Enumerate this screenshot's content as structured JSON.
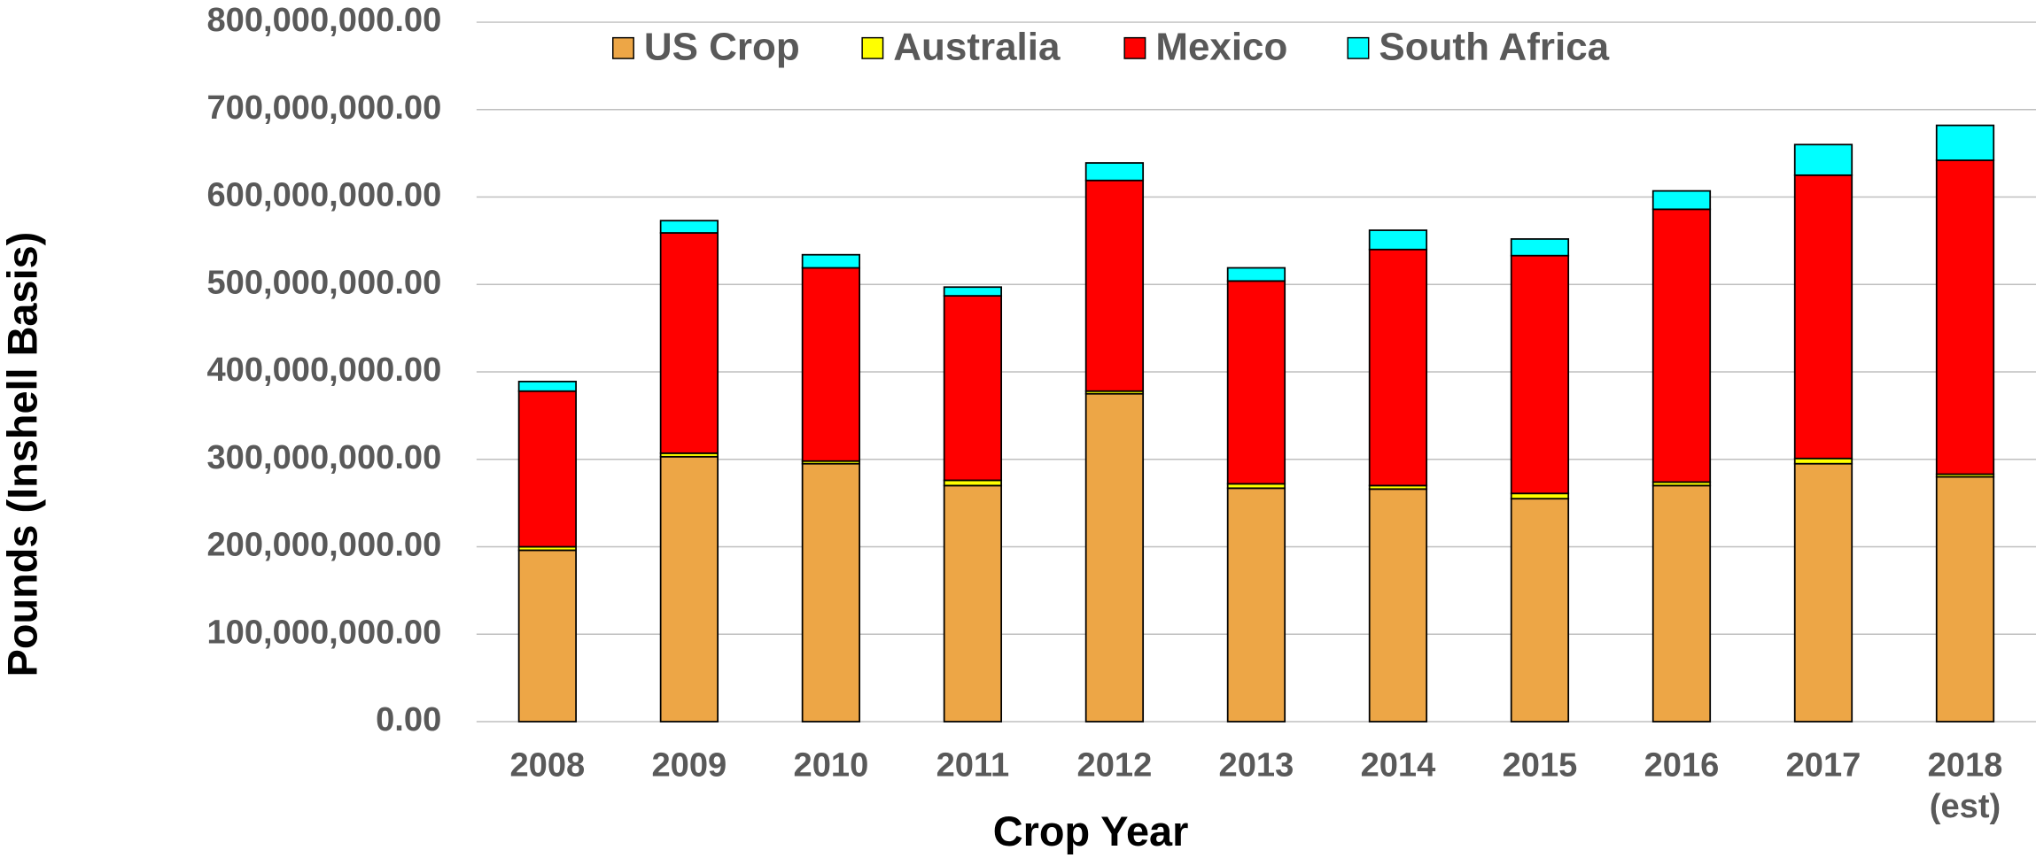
{
  "chart_data": {
    "type": "bar",
    "stacked": true,
    "y_label": "Pounds (Inshell Basis)",
    "x_label": "Crop Year",
    "categories": [
      "2008",
      "2009",
      "2010",
      "2011",
      "2012",
      "2013",
      "2014",
      "2015",
      "2016",
      "2017",
      "2018 (est)"
    ],
    "series": [
      {
        "name": "US Crop",
        "color": "#eda646",
        "values": [
          196000000,
          303000000,
          295000000,
          270000000,
          375000000,
          267000000,
          266000000,
          255000000,
          270000000,
          295000000,
          280000000
        ]
      },
      {
        "name": "Australia",
        "color": "#ffff00",
        "values": [
          4000000,
          4000000,
          3000000,
          6000000,
          3000000,
          5000000,
          4000000,
          6000000,
          4000000,
          6000000,
          3000000
        ]
      },
      {
        "name": "Mexico",
        "color": "#ff0000",
        "values": [
          178000000,
          252000000,
          221000000,
          211000000,
          241000000,
          232000000,
          270000000,
          272000000,
          312000000,
          324000000,
          359000000
        ]
      },
      {
        "name": "South Africa",
        "color": "#00ffff",
        "values": [
          11000000,
          14000000,
          15000000,
          10000000,
          20000000,
          15000000,
          22000000,
          19000000,
          21000000,
          35000000,
          40000000
        ]
      }
    ],
    "ylim": [
      0,
      800000000
    ],
    "yticks": [
      {
        "value": 0,
        "label": "0.00"
      },
      {
        "value": 100000000,
        "label": "100,000,000.00"
      },
      {
        "value": 200000000,
        "label": "200,000,000.00"
      },
      {
        "value": 300000000,
        "label": "300,000,000.00"
      },
      {
        "value": 400000000,
        "label": "400,000,000.00"
      },
      {
        "value": 500000000,
        "label": "500,000,000.00"
      },
      {
        "value": 600000000,
        "label": "600,000,000.00"
      },
      {
        "value": 700000000,
        "label": "700,000,000.00"
      },
      {
        "value": 800000000,
        "label": "800,000,000.00"
      }
    ],
    "grid": true,
    "legend": "top"
  }
}
